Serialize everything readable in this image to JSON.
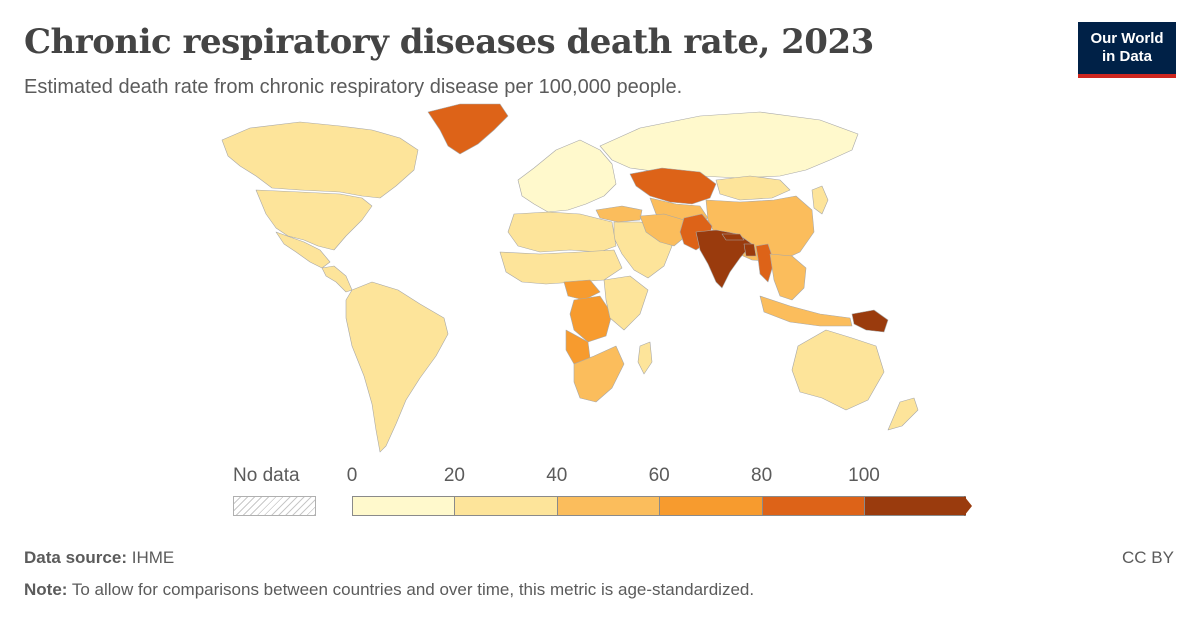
{
  "header": {
    "title": "Chronic respiratory diseases death rate, 2023",
    "subtitle": "Estimated death rate from chronic respiratory disease per 100,000 people."
  },
  "logo": {
    "line1": "Our World",
    "line2": "in Data"
  },
  "legend": {
    "no_data_label": "No data",
    "ticks": [
      "0",
      "20",
      "40",
      "60",
      "80",
      "100"
    ],
    "colors": [
      "#fff9cc",
      "#fde49a",
      "#fbbd5c",
      "#f79b2e",
      "#dd6318",
      "#9a3b0d"
    ]
  },
  "footer": {
    "source_label": "Data source:",
    "source_value": "IHME",
    "note_label": "Note:",
    "note_value": "To allow for comparisons between countries and over time, this metric is age-standardized.",
    "license": "CC BY"
  },
  "map": {
    "regions": [
      {
        "name": "Canada",
        "bin": 1
      },
      {
        "name": "United States",
        "bin": 1
      },
      {
        "name": "Mexico",
        "bin": 1
      },
      {
        "name": "Central America",
        "bin": 1
      },
      {
        "name": "South America",
        "bin": 1
      },
      {
        "name": "Greenland",
        "bin": 4
      },
      {
        "name": "Western Europe",
        "bin": 0
      },
      {
        "name": "Russia",
        "bin": 0
      },
      {
        "name": "Kazakhstan",
        "bin": 4
      },
      {
        "name": "Central Asia",
        "bin": 2
      },
      {
        "name": "China",
        "bin": 2
      },
      {
        "name": "Mongolia",
        "bin": 1
      },
      {
        "name": "Middle East",
        "bin": 1
      },
      {
        "name": "Turkey",
        "bin": 2
      },
      {
        "name": "Iran",
        "bin": 2
      },
      {
        "name": "Pakistan",
        "bin": 4
      },
      {
        "name": "India",
        "bin": 5
      },
      {
        "name": "Nepal",
        "bin": 5
      },
      {
        "name": "Bangladesh",
        "bin": 5
      },
      {
        "name": "Myanmar",
        "bin": 4
      },
      {
        "name": "Southeast Asia",
        "bin": 2
      },
      {
        "name": "Indonesia",
        "bin": 2
      },
      {
        "name": "Papua New Guinea",
        "bin": 5
      },
      {
        "name": "North Africa",
        "bin": 1
      },
      {
        "name": "Sahel",
        "bin": 1
      },
      {
        "name": "Central African Republic",
        "bin": 3
      },
      {
        "name": "DR Congo",
        "bin": 3
      },
      {
        "name": "Angola",
        "bin": 3
      },
      {
        "name": "East Africa",
        "bin": 1
      },
      {
        "name": "Southern Africa",
        "bin": 2
      },
      {
        "name": "Madagascar",
        "bin": 1
      },
      {
        "name": "Australia",
        "bin": 1
      },
      {
        "name": "New Zealand",
        "bin": 1
      },
      {
        "name": "Korea/Japan",
        "bin": 1
      }
    ]
  }
}
